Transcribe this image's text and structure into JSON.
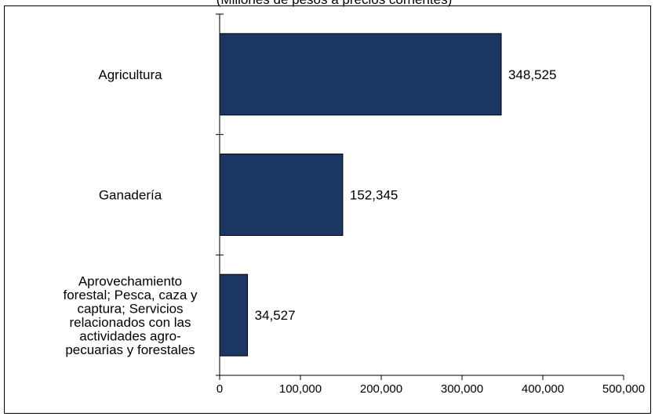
{
  "subtitle": "(Millones de pesos a precios corrientes)",
  "colors": {
    "bar": "#1b3660",
    "frame": "#000000",
    "background": "#ffffff"
  },
  "chart_data": {
    "type": "bar",
    "orientation": "horizontal",
    "title": "",
    "subtitle": "(Millones de pesos a precios corrientes)",
    "xlabel": "",
    "ylabel": "",
    "categories": [
      [
        "Agricultura"
      ],
      [
        "Ganadería"
      ],
      [
        "Aprovechamiento",
        "forestal; Pesca, caza y",
        "captura; Servicios",
        "relacionados con las",
        "actividades agro-",
        "pecuarias y forestales"
      ]
    ],
    "values": [
      348525,
      152345,
      34527
    ],
    "value_labels": [
      "348,525",
      "152,345",
      "34,527"
    ],
    "xlim": [
      0,
      500000
    ],
    "xticks": [
      0,
      100000,
      200000,
      300000,
      400000,
      500000
    ],
    "xtick_labels": [
      "0",
      "100,000",
      "200,000",
      "300,000",
      "400,000",
      "500,000"
    ],
    "grid": false,
    "legend": "none"
  }
}
